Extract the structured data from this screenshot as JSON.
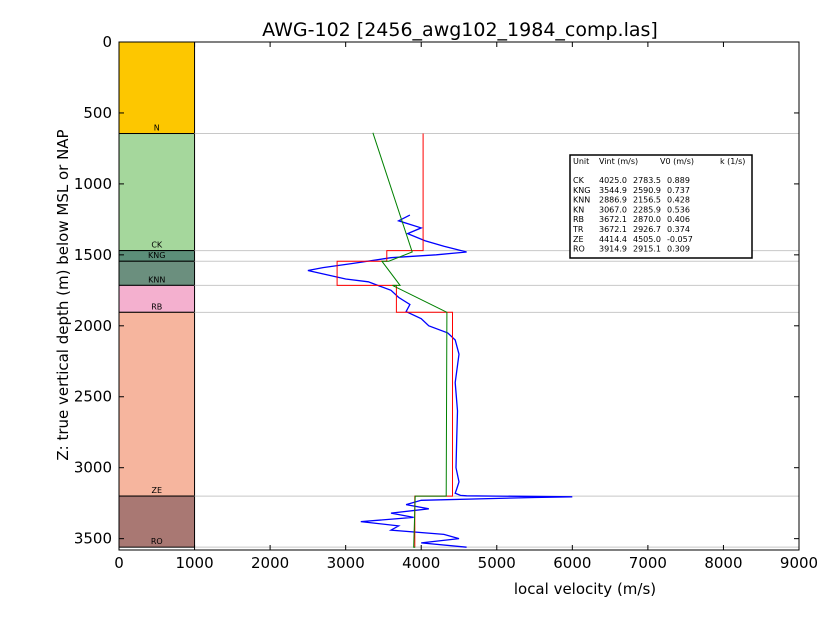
{
  "chart_data": {
    "type": "line",
    "title": "AWG-102 [2456_awg102_1984_comp.las]",
    "xlabel": "local velocity (m/s)",
    "ylabel": "Z: true vertical depth (m) below MSL or NAP",
    "xlim": [
      0,
      9000
    ],
    "ylim": [
      3580,
      0
    ],
    "y_inverted": true,
    "xticks": [
      "0",
      "1000",
      "2000",
      "3000",
      "4000",
      "5000",
      "6000",
      "7000",
      "8000",
      "9000"
    ],
    "yticks": [
      "0",
      "500",
      "1000",
      "1500",
      "2000",
      "2500",
      "3000",
      "3500"
    ],
    "grid": false,
    "units": [
      {
        "label": "N",
        "top": 0,
        "bottom": 645,
        "color": "#fdc700"
      },
      {
        "label": "CK",
        "top": 645,
        "bottom": 1470,
        "color": "#a5d79c"
      },
      {
        "label": "KNG",
        "top": 1470,
        "bottom": 1545,
        "color": "#5c8f79"
      },
      {
        "label": "KNN",
        "top": 1545,
        "bottom": 1715,
        "color": "#6b8f7e"
      },
      {
        "label": "RB",
        "top": 1715,
        "bottom": 1905,
        "color": "#f4b0cf"
      },
      {
        "label": "ZE",
        "top": 1905,
        "bottom": 3200,
        "color": "#f6b59e"
      },
      {
        "label": "RO",
        "top": 3200,
        "bottom": 3560,
        "color": "#a97873"
      }
    ],
    "boundaries": [
      645,
      1470,
      1545,
      1715,
      1905,
      3200,
      3560
    ],
    "series": [
      {
        "color": "#0000ff",
        "x": [
          3850,
          3700,
          4000,
          3820,
          4050,
          4300,
          4600,
          4200,
          3600,
          3100,
          2700,
          2500,
          2750,
          3000,
          3300,
          3450,
          3600,
          3700,
          3850,
          3800,
          4000,
          4100,
          4350,
          4450,
          4500,
          4450,
          4480,
          4470,
          4460,
          4500,
          4470,
          4450,
          4520,
          4600,
          5000,
          6000,
          5500,
          4000,
          3800,
          4100,
          3600,
          3900,
          3200,
          3700,
          3600,
          4300,
          4500,
          4000,
          4600
        ],
        "y": [
          1220,
          1260,
          1310,
          1350,
          1400,
          1440,
          1480,
          1500,
          1520,
          1560,
          1590,
          1610,
          1640,
          1670,
          1690,
          1720,
          1750,
          1800,
          1850,
          1900,
          1950,
          2000,
          2050,
          2100,
          2200,
          2400,
          2600,
          2800,
          3000,
          3100,
          3150,
          3180,
          3195,
          3198,
          3200,
          3205,
          3210,
          3230,
          3260,
          3290,
          3320,
          3350,
          3380,
          3410,
          3440,
          3470,
          3500,
          3530,
          3560
        ]
      },
      {
        "color": "#ff0000",
        "x": [
          4025,
          4025,
          3545,
          3545,
          2887,
          2887,
          3672,
          3672,
          4414,
          4414,
          3915,
          3915
        ],
        "y": [
          645,
          1470,
          1470,
          1545,
          1545,
          1715,
          1715,
          1905,
          1905,
          3200,
          3200,
          3560
        ]
      },
      {
        "color": "#008000",
        "x": [
          3360,
          3880,
          3880,
          3570,
          3480,
          3720,
          3620,
          4340,
          4330,
          3920,
          3900,
          3920
        ],
        "y": [
          640,
          1480,
          1480,
          1545,
          1545,
          1715,
          1715,
          1905,
          3200,
          3200,
          3560,
          3560
        ]
      }
    ],
    "legend": {
      "placement": "upper-right",
      "header": [
        "Unit",
        "Vint (m/s)",
        "V0 (m/s)",
        "k (1/s)"
      ],
      "rows": [
        [
          "CK",
          "4025.0",
          "2783.5",
          "0.889"
        ],
        [
          "KNG",
          "3544.9",
          "2590.9",
          "0.737"
        ],
        [
          "KNN",
          "2886.9",
          "2156.5",
          "0.428"
        ],
        [
          "KN",
          "3067.0",
          "2285.9",
          "0.536"
        ],
        [
          "RB",
          "3672.1",
          "2870.0",
          "0.406"
        ],
        [
          "TR",
          "3672.1",
          "2926.7",
          "0.374"
        ],
        [
          "ZE",
          "4414.4",
          "4505.0",
          "-0.057"
        ],
        [
          "RO",
          "3914.9",
          "2915.1",
          "0.309"
        ]
      ]
    }
  }
}
